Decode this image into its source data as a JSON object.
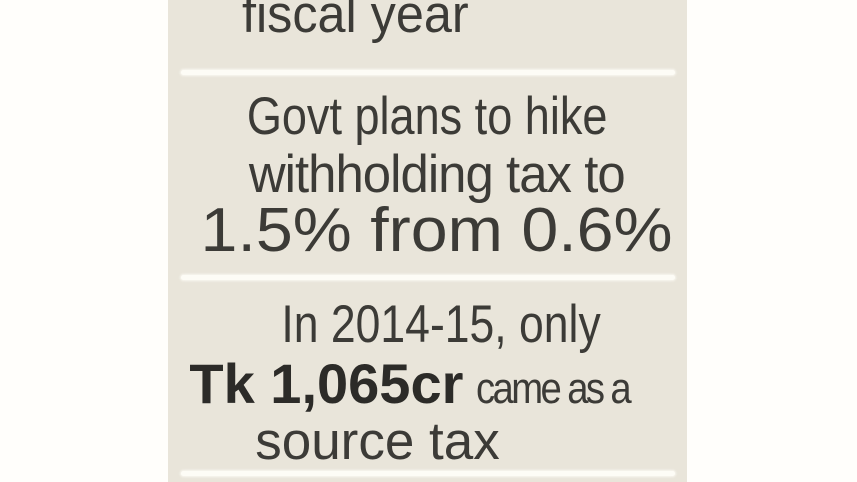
{
  "factbox": {
    "top_section": {
      "text": "fiscal year"
    },
    "withholding_section": {
      "line1": "Govt plans to hike",
      "line2": "withholding tax to",
      "line3": "1.5% from 0.6%",
      "new_rate": "1.5%",
      "old_rate": "0.6%"
    },
    "source_tax_section": {
      "line1": "In 2014-15, only",
      "amount": "Tk 1,065cr",
      "amount_suffix": "came as a",
      "line3": "source tax",
      "fiscal_year": "2014-15"
    },
    "colors": {
      "panel_background": "#e9e5da",
      "page_background": "#fffefb",
      "divider": "#fdfcf6",
      "text": "#3c3b37",
      "amount_text": "#2c2b28"
    }
  }
}
